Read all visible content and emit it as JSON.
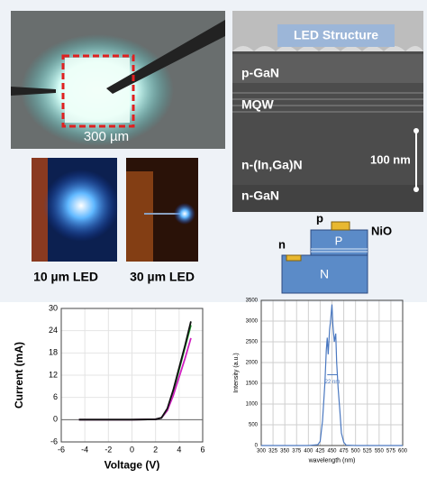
{
  "photo_labels": {
    "chip": "300 µm",
    "led_small": "10 µm LED",
    "led_large": "30 µm LED"
  },
  "sem": {
    "title": "LED Structure",
    "layers": [
      "p-GaN",
      "MQW",
      "n-(In,Ga)N",
      "n-GaN"
    ],
    "scale": "100 nm"
  },
  "diagram": {
    "p_contact": "p",
    "n_contact": "n",
    "cap": "NiO",
    "p_layer": "P",
    "n_layer": "N"
  },
  "chart_data": [
    {
      "type": "line",
      "xlabel": "Voltage (V)",
      "ylabel": "Current (mA)",
      "x": [
        -4.5,
        -2,
        0,
        2,
        2.5,
        3,
        3.5,
        4,
        4.5,
        5
      ],
      "series": [
        {
          "color": "#1a9a2a",
          "values": [
            0,
            0,
            0,
            0.1,
            0.5,
            2.5,
            7.5,
            13.5,
            19.5,
            25.5
          ]
        },
        {
          "color": "#d020c0",
          "values": [
            0,
            0,
            0,
            0.1,
            0.5,
            2.5,
            6.5,
            11.5,
            16.5,
            22
          ]
        },
        {
          "color": "#111111",
          "values": [
            0,
            0,
            0,
            0.1,
            0.5,
            3,
            8,
            14,
            20,
            26.5
          ]
        }
      ],
      "xlim": [
        -6,
        6
      ],
      "xticks": [
        -6,
        -4,
        -2,
        0,
        2,
        4,
        6
      ],
      "ylim": [
        -6,
        30
      ],
      "yticks": [
        -6,
        0,
        6,
        12,
        18,
        24,
        30
      ],
      "grid": true
    },
    {
      "type": "line",
      "xlabel": "wavelength (nm)",
      "ylabel": "Intensity (a.u.)",
      "annotation": "22 nm",
      "x": [
        300,
        400,
        420,
        425,
        430,
        435,
        438,
        440,
        442,
        445,
        447,
        450,
        452,
        455,
        458,
        460,
        463,
        467,
        470,
        475,
        480,
        500,
        600
      ],
      "series": [
        {
          "color": "#4a78c0",
          "values": [
            0,
            0,
            20,
            100,
            600,
            1500,
            2300,
            2600,
            2200,
            2800,
            3000,
            3400,
            2900,
            2500,
            2700,
            2000,
            1400,
            800,
            300,
            80,
            10,
            0,
            0
          ]
        }
      ],
      "xlim": [
        300,
        600
      ],
      "xticks": [
        300,
        325,
        350,
        375,
        400,
        425,
        450,
        475,
        500,
        525,
        550,
        575,
        600
      ],
      "ylim": [
        0,
        3500
      ],
      "yticks": [
        0,
        500,
        1000,
        1500,
        2000,
        2500,
        3000,
        3500
      ],
      "grid": true
    }
  ]
}
